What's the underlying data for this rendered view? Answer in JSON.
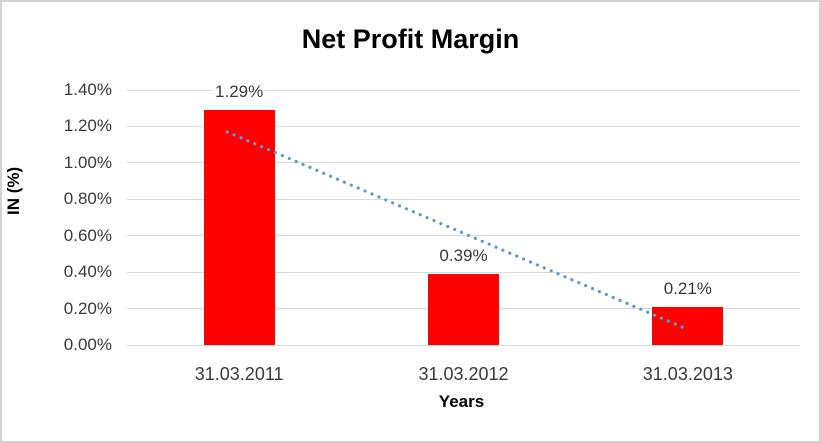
{
  "chart_data": {
    "type": "bar",
    "title": "Net Profit Margin",
    "categories": [
      "31.03.2011",
      "31.03.2012",
      "31.03.2013"
    ],
    "values": [
      1.29,
      0.39,
      0.21
    ],
    "value_labels": [
      "1.29%",
      "0.39%",
      "0.21%"
    ],
    "xlabel": "Years",
    "ylabel": "IN (%)",
    "ylim": [
      0,
      1.4
    ],
    "ytick_step": 0.2,
    "ytick_labels": [
      "0.00%",
      "0.20%",
      "0.40%",
      "0.60%",
      "0.80%",
      "1.00%",
      "1.20%",
      "1.40%"
    ],
    "grid": true,
    "legend": false,
    "bar_color": "#ff0000",
    "gridline_color": "#d9d9d9",
    "trendline": {
      "type": "linear",
      "style": "dotted",
      "color": "#5b9bd5",
      "start_value": 1.17,
      "end_value": 0.09
    }
  }
}
